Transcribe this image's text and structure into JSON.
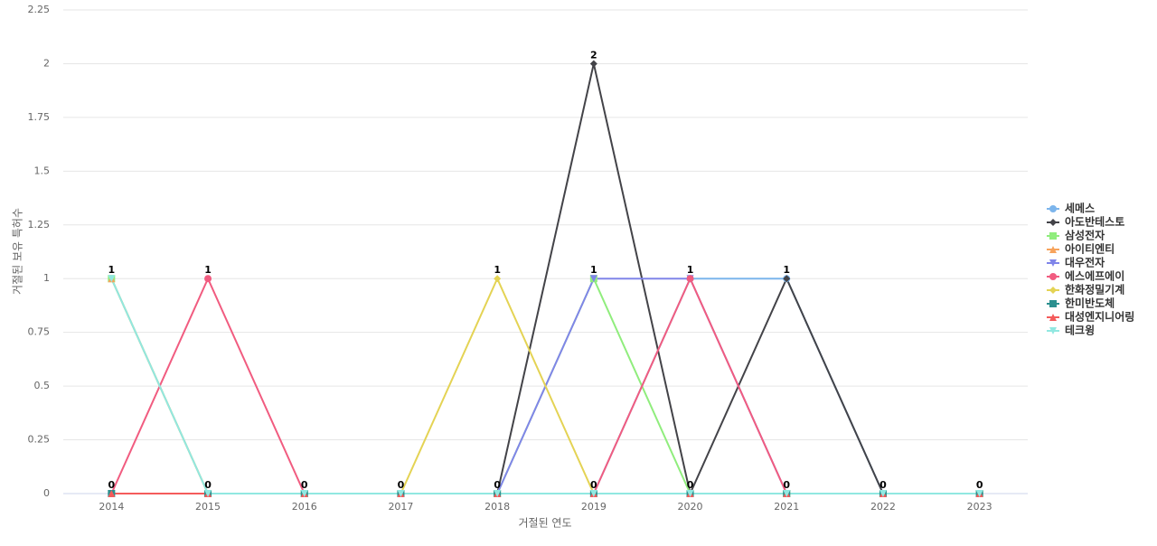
{
  "chart_data": {
    "type": "line",
    "title": null,
    "x_label": "거절된 연도",
    "y_label": "거절된 보유 특허수",
    "categories": [
      "2014",
      "2015",
      "2016",
      "2017",
      "2018",
      "2019",
      "2020",
      "2021",
      "2022",
      "2023"
    ],
    "ylim": [
      0,
      2.25
    ],
    "yticks": [
      0,
      0.25,
      0.5,
      0.75,
      1,
      1.25,
      1.5,
      1.75,
      2,
      2.25
    ],
    "grid": true,
    "legend": "right",
    "series": [
      {
        "name": "세메스",
        "color": "#7cb5ec",
        "values": [
          0,
          0,
          0,
          0,
          0,
          0,
          1,
          1,
          0,
          0
        ]
      },
      {
        "name": "아도반테스토",
        "color": "#434348",
        "values": [
          0,
          0,
          0,
          0,
          0,
          2,
          0,
          1,
          0,
          0
        ]
      },
      {
        "name": "삼성전자",
        "color": "#90ed7d",
        "values": [
          1,
          0,
          0,
          0,
          0,
          1,
          0,
          0,
          0,
          0
        ]
      },
      {
        "name": "아이티엔티",
        "color": "#f7a35c",
        "values": [
          1,
          0,
          0,
          0,
          0,
          0,
          0,
          0,
          0,
          0
        ]
      },
      {
        "name": "대우전자",
        "color": "#8085e9",
        "values": [
          0,
          0,
          0,
          0,
          0,
          1,
          1,
          0,
          0,
          0
        ]
      },
      {
        "name": "에스에프에이",
        "color": "#f15c80",
        "values": [
          0,
          1,
          0,
          0,
          0,
          0,
          1,
          0,
          0,
          0
        ]
      },
      {
        "name": "한화정밀기계",
        "color": "#e4d354",
        "values": [
          0,
          0,
          0,
          0,
          1,
          0,
          0,
          0,
          0,
          0
        ]
      },
      {
        "name": "한미반도체",
        "color": "#2b908f",
        "values": [
          0,
          0,
          0,
          0,
          0,
          0,
          0,
          0,
          0,
          0
        ]
      },
      {
        "name": "대성엔지니어링",
        "color": "#f45b5b",
        "values": [
          0,
          0,
          0,
          0,
          0,
          0,
          0,
          0,
          0,
          0
        ]
      },
      {
        "name": "테크윙",
        "color": "#91e8e1",
        "values": [
          1,
          0,
          0,
          0,
          0,
          0,
          0,
          0,
          0,
          0
        ]
      }
    ]
  }
}
